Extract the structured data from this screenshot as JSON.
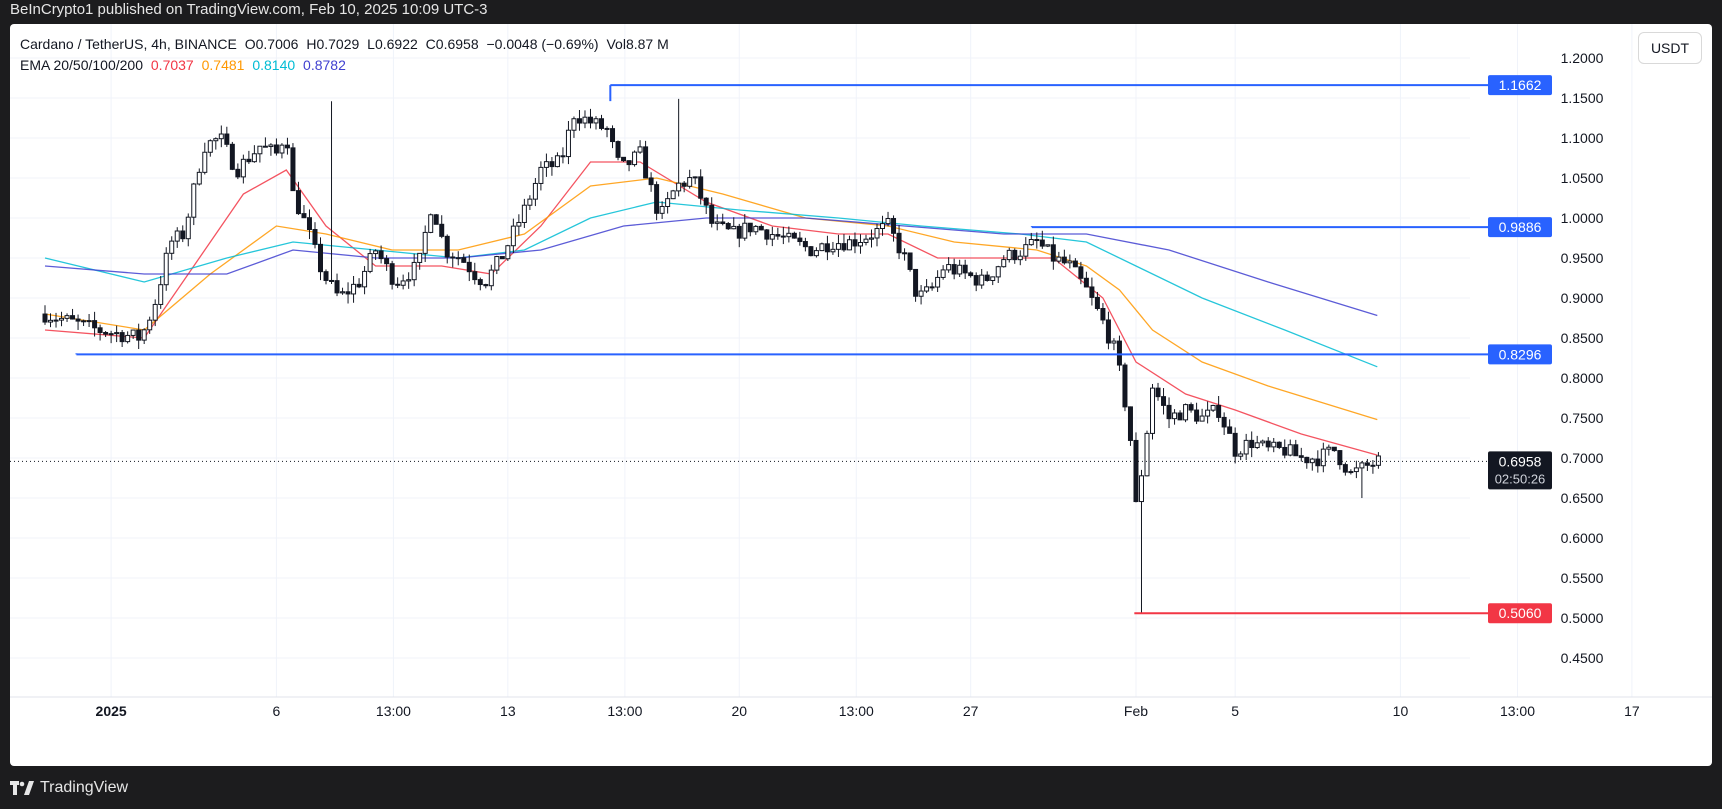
{
  "header": {
    "published": "BeInCrypto1 published on TradingView.com, Feb 10, 2025 10:09 UTC-3"
  },
  "legend": {
    "symbol": "Cardano / TetherUS, 4h, BINANCE",
    "open": "O0.7006",
    "high": "H0.7029",
    "low": "L0.6922",
    "close": "C0.6958",
    "change": "−0.0048 (−0.69%)",
    "volume": "Vol8.87 M",
    "ema_label": "EMA 20/50/100/200",
    "ema20": "0.7037",
    "ema50": "0.7481",
    "ema100": "0.8140",
    "ema200": "0.8782"
  },
  "currency_button": "USDT",
  "footer": {
    "brand": "TradingView"
  },
  "colors": {
    "up": "#131722",
    "level_blue": "#2962ff",
    "level_red": "#f23645",
    "ema20": "#f23645",
    "ema50": "#ff9800",
    "ema100": "#00bcd4",
    "ema200": "#3f3fd0"
  },
  "chart_data": {
    "type": "candlestick",
    "ylim": [
      0.42,
      1.22
    ],
    "y_ticks": [
      "0.4500",
      "0.5000",
      "0.5500",
      "0.6000",
      "0.6500",
      "0.7000",
      "0.7500",
      "0.8000",
      "0.8500",
      "0.9000",
      "0.9500",
      "1.0000",
      "1.0500",
      "1.1000",
      "1.1500",
      "1.2000"
    ],
    "x_tick_labels": [
      "2025",
      "6",
      "13:00",
      "13",
      "13:00",
      "20",
      "13:00",
      "27",
      "Feb",
      "5",
      "10",
      "13:00",
      "17"
    ],
    "x_range": [
      "2024-12-30",
      "2025-02-17"
    ],
    "current_price": "0.6958",
    "countdown": "02:50:26",
    "levels": [
      {
        "label": "1.1662",
        "value": 1.1662,
        "color": "blue",
        "from": "2025-01-16"
      },
      {
        "label": "0.9886",
        "value": 0.9886,
        "color": "blue",
        "from": "2025-01-29"
      },
      {
        "label": "0.8296",
        "value": 0.8296,
        "color": "blue",
        "from": "2024-12-30"
      },
      {
        "label": "0.5060",
        "value": 0.506,
        "color": "red",
        "from": "2025-02-03"
      }
    ],
    "close_path": [
      [
        0,
        0.88
      ],
      [
        1.6,
        0.86
      ],
      [
        2.9,
        0.85
      ],
      [
        3.3,
        0.89
      ],
      [
        3.8,
        0.97
      ],
      [
        4.2,
        0.98
      ],
      [
        4.8,
        1.09
      ],
      [
        5.3,
        1.1
      ],
      [
        5.8,
        1.06
      ],
      [
        6.5,
        1.09
      ],
      [
        7.0,
        1.08
      ],
      [
        7.3,
        1.11
      ],
      [
        7.5,
        1.03
      ],
      [
        7.9,
        0.99
      ],
      [
        8.4,
        0.93
      ],
      [
        8.9,
        0.9
      ],
      [
        9.5,
        0.92
      ],
      [
        10.0,
        0.96
      ],
      [
        10.6,
        0.92
      ],
      [
        11.3,
        0.94
      ],
      [
        11.7,
        1.02
      ],
      [
        12.1,
        0.96
      ],
      [
        12.6,
        0.95
      ],
      [
        13.0,
        0.93
      ],
      [
        13.3,
        0.92
      ],
      [
        13.8,
        0.95
      ],
      [
        14.5,
        1.01
      ],
      [
        15.0,
        1.06
      ],
      [
        15.6,
        1.07
      ],
      [
        16.0,
        1.13
      ],
      [
        16.5,
        1.12
      ],
      [
        17.0,
        1.11
      ],
      [
        17.4,
        1.06
      ],
      [
        18.0,
        1.08
      ],
      [
        18.6,
        1.0
      ],
      [
        19.1,
        1.04
      ],
      [
        19.6,
        1.05
      ],
      [
        20.2,
        0.99
      ],
      [
        20.8,
        0.98
      ],
      [
        21.4,
        0.99
      ],
      [
        22.0,
        0.98
      ],
      [
        22.6,
        0.97
      ],
      [
        23.2,
        0.96
      ],
      [
        23.8,
        0.97
      ],
      [
        24.4,
        0.97
      ],
      [
        25.0,
        0.98
      ],
      [
        25.5,
        0.99
      ],
      [
        26.0,
        0.95
      ],
      [
        26.4,
        0.9
      ],
      [
        26.8,
        0.91
      ],
      [
        27.2,
        0.94
      ],
      [
        27.8,
        0.93
      ],
      [
        28.4,
        0.92
      ],
      [
        29.0,
        0.95
      ],
      [
        29.6,
        0.96
      ],
      [
        30.0,
        0.97
      ],
      [
        30.5,
        0.95
      ],
      [
        31.0,
        0.94
      ],
      [
        31.5,
        0.91
      ],
      [
        32.0,
        0.87
      ],
      [
        32.4,
        0.83
      ],
      [
        32.8,
        0.74
      ],
      [
        33.0,
        0.64
      ],
      [
        33.2,
        0.69
      ],
      [
        33.5,
        0.79
      ],
      [
        34.0,
        0.75
      ],
      [
        34.5,
        0.76
      ],
      [
        35.0,
        0.75
      ],
      [
        35.5,
        0.76
      ],
      [
        36.0,
        0.71
      ],
      [
        36.5,
        0.72
      ],
      [
        37.0,
        0.71
      ],
      [
        37.5,
        0.71
      ],
      [
        38.0,
        0.7
      ],
      [
        38.5,
        0.7
      ],
      [
        39.0,
        0.71
      ],
      [
        39.5,
        0.68
      ],
      [
        40.0,
        0.69
      ],
      [
        40.35,
        0.6958
      ]
    ],
    "wick_points": [
      {
        "day": 8.6,
        "value": 1.146
      },
      {
        "day": 19.1,
        "value": 1.149
      },
      {
        "day": 33.1,
        "value": 0.506
      },
      {
        "day": 39.8,
        "value": 0.65
      }
    ],
    "ema": [
      {
        "name": "EMA 20",
        "key": "ema20",
        "points": [
          [
            0,
            0.86
          ],
          [
            3,
            0.85
          ],
          [
            4.5,
            0.94
          ],
          [
            6.0,
            1.03
          ],
          [
            7.3,
            1.06
          ],
          [
            8.5,
            0.99
          ],
          [
            10.0,
            0.94
          ],
          [
            12.0,
            0.94
          ],
          [
            13.5,
            0.93
          ],
          [
            15.0,
            0.99
          ],
          [
            16.5,
            1.07
          ],
          [
            18.0,
            1.07
          ],
          [
            20.0,
            1.02
          ],
          [
            22.0,
            0.99
          ],
          [
            24.0,
            0.98
          ],
          [
            25.5,
            0.98
          ],
          [
            27.0,
            0.95
          ],
          [
            29.0,
            0.95
          ],
          [
            30.5,
            0.95
          ],
          [
            32.0,
            0.9
          ],
          [
            33.0,
            0.82
          ],
          [
            34.5,
            0.78
          ],
          [
            36.0,
            0.76
          ],
          [
            38.0,
            0.73
          ],
          [
            40.3,
            0.7037
          ]
        ]
      },
      {
        "name": "EMA 50",
        "key": "ema50",
        "points": [
          [
            0,
            0.88
          ],
          [
            3,
            0.86
          ],
          [
            5.0,
            0.93
          ],
          [
            7.0,
            0.99
          ],
          [
            8.5,
            0.98
          ],
          [
            10.5,
            0.96
          ],
          [
            12.5,
            0.96
          ],
          [
            14.5,
            0.98
          ],
          [
            16.5,
            1.04
          ],
          [
            18.5,
            1.05
          ],
          [
            20.5,
            1.03
          ],
          [
            23.0,
            1.0
          ],
          [
            25.5,
            0.99
          ],
          [
            27.5,
            0.97
          ],
          [
            30.0,
            0.96
          ],
          [
            31.5,
            0.94
          ],
          [
            32.5,
            0.91
          ],
          [
            33.5,
            0.86
          ],
          [
            35.0,
            0.82
          ],
          [
            37.0,
            0.79
          ],
          [
            40.3,
            0.7481
          ]
        ]
      },
      {
        "name": "EMA 100",
        "key": "ema100",
        "points": [
          [
            0,
            0.95
          ],
          [
            3,
            0.92
          ],
          [
            5.5,
            0.95
          ],
          [
            7.5,
            0.97
          ],
          [
            10.0,
            0.96
          ],
          [
            12.5,
            0.95
          ],
          [
            14.5,
            0.96
          ],
          [
            16.5,
            1.0
          ],
          [
            18.5,
            1.02
          ],
          [
            21.0,
            1.01
          ],
          [
            24.0,
            1.0
          ],
          [
            26.5,
            0.99
          ],
          [
            29.5,
            0.98
          ],
          [
            31.5,
            0.97
          ],
          [
            33.0,
            0.94
          ],
          [
            35.0,
            0.9
          ],
          [
            37.5,
            0.86
          ],
          [
            40.3,
            0.814
          ]
        ]
      },
      {
        "name": "EMA 200",
        "key": "ema200",
        "points": [
          [
            0,
            0.94
          ],
          [
            3,
            0.93
          ],
          [
            5.5,
            0.93
          ],
          [
            7.5,
            0.96
          ],
          [
            10.0,
            0.95
          ],
          [
            12.5,
            0.95
          ],
          [
            15.0,
            0.96
          ],
          [
            17.5,
            0.99
          ],
          [
            20.0,
            1.0
          ],
          [
            23.0,
            1.0
          ],
          [
            26.0,
            0.99
          ],
          [
            29.0,
            0.98
          ],
          [
            31.5,
            0.98
          ],
          [
            34.0,
            0.96
          ],
          [
            37.0,
            0.92
          ],
          [
            40.3,
            0.8782
          ]
        ]
      }
    ]
  }
}
